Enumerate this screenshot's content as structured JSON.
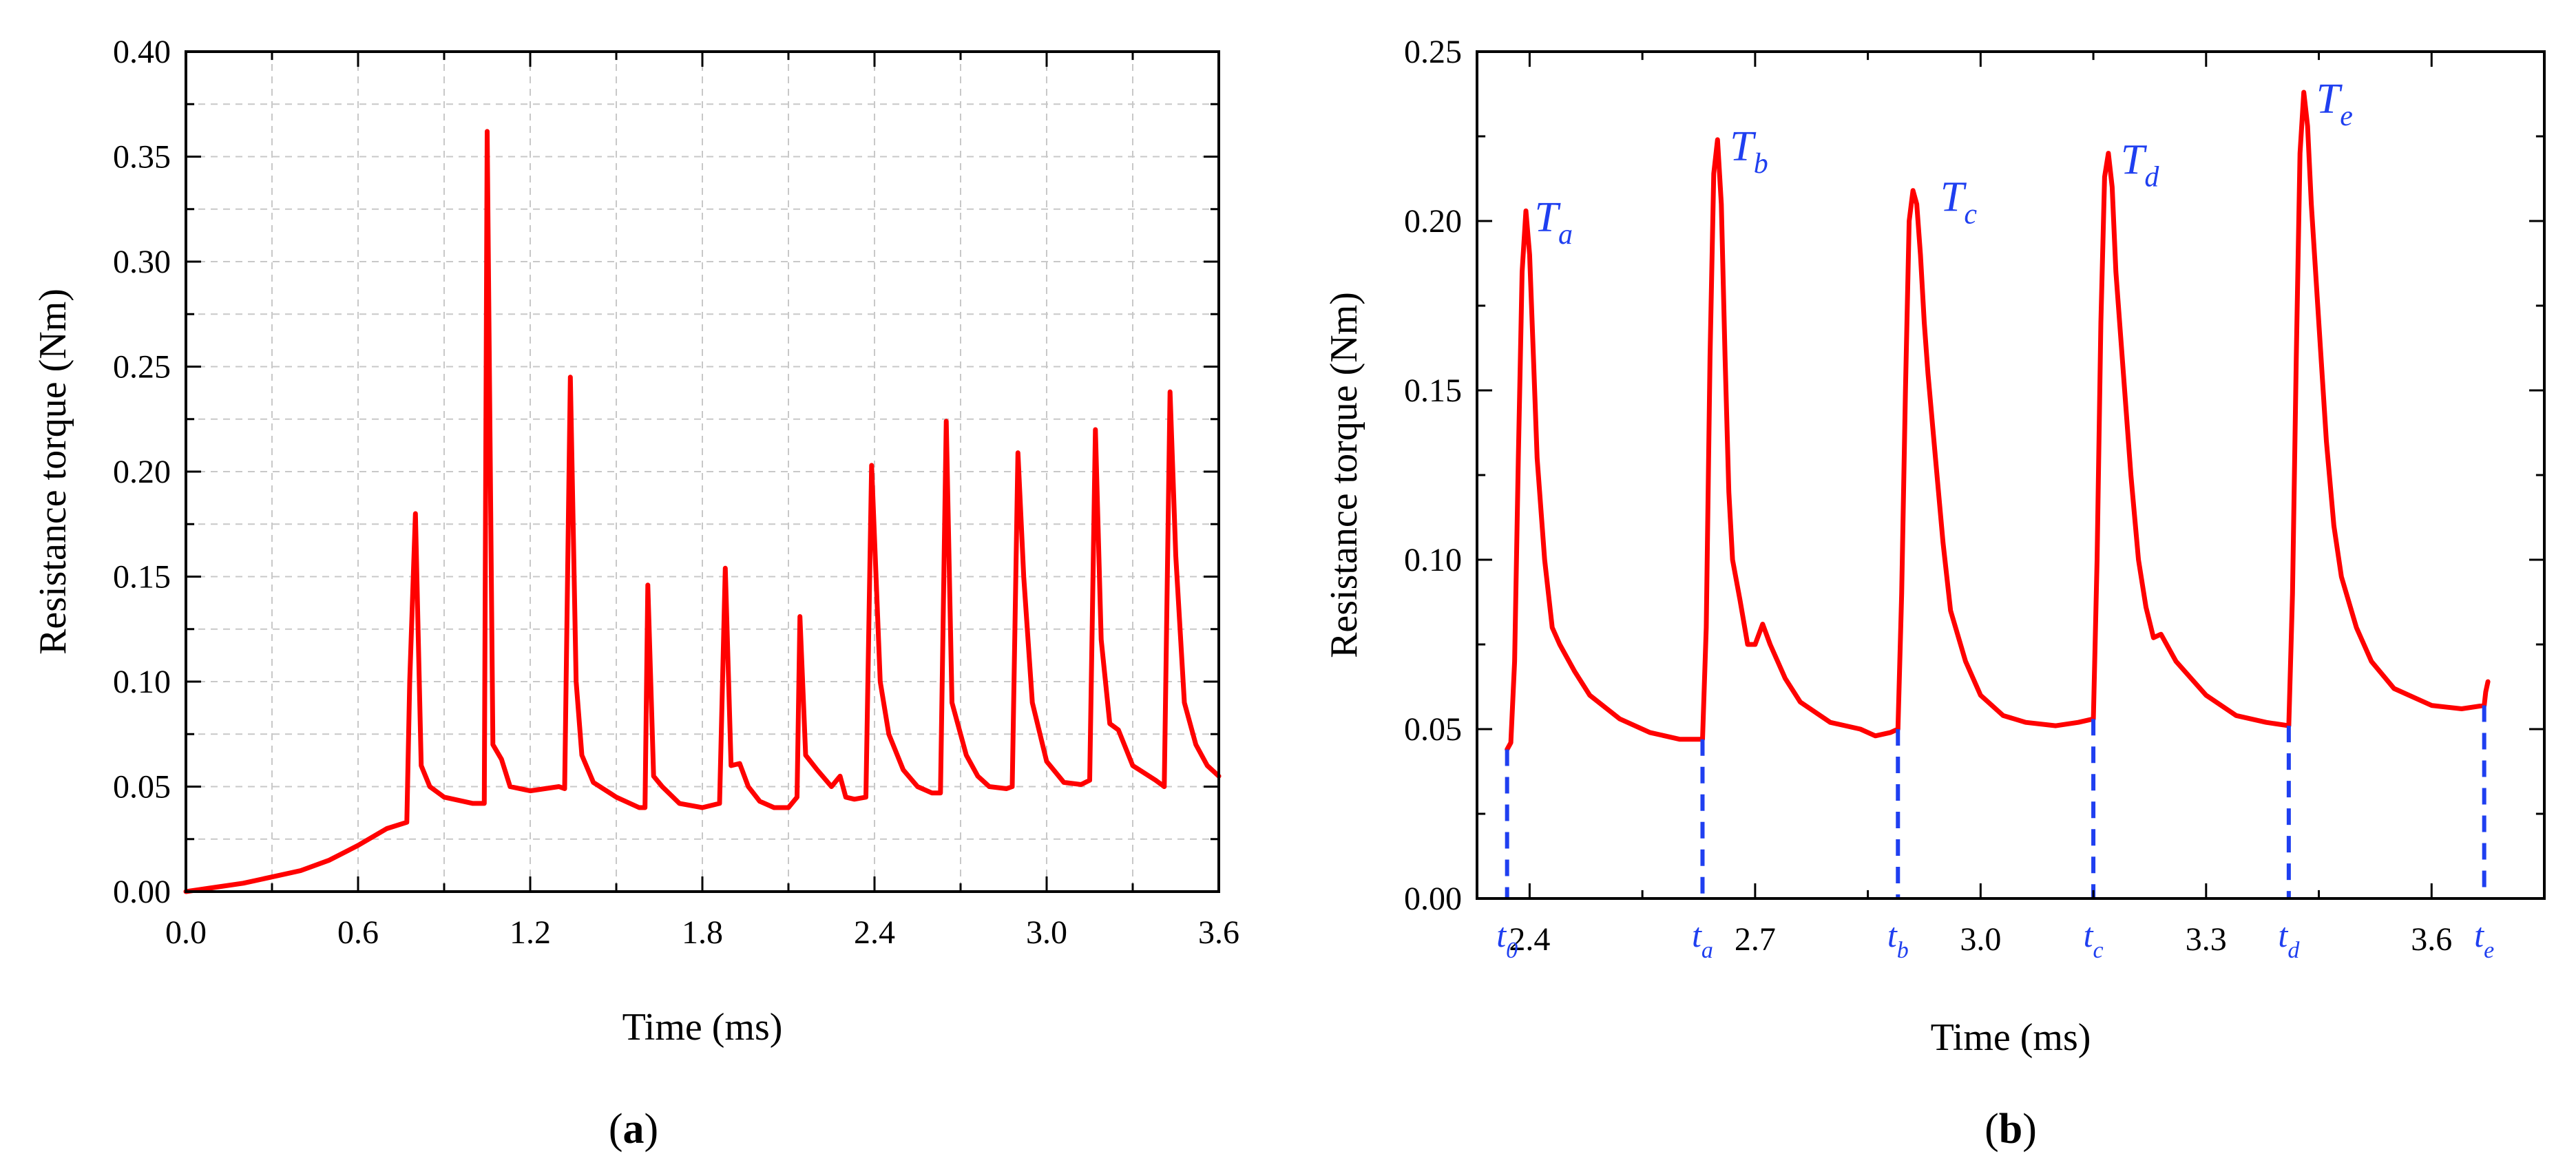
{
  "chart_data": [
    {
      "type": "line",
      "panel_label": "a",
      "xlabel": "Time (ms)",
      "ylabel": "Resistance torque (Nm)",
      "xlim": [
        0.0,
        3.6
      ],
      "ylim": [
        0.0,
        0.4
      ],
      "xticks": [
        "0.0",
        "0.6",
        "1.2",
        "1.8",
        "2.4",
        "3.0",
        "3.6"
      ],
      "yticks": [
        "0.00",
        "0.05",
        "0.10",
        "0.15",
        "0.20",
        "0.25",
        "0.30",
        "0.35",
        "0.40"
      ],
      "grid": true,
      "series": [
        {
          "name": "Resistance torque",
          "color": "#ff0000",
          "x": [
            0.0,
            0.1,
            0.2,
            0.3,
            0.4,
            0.5,
            0.6,
            0.7,
            0.77,
            0.78,
            0.8,
            0.82,
            0.85,
            0.9,
            1.0,
            1.04,
            1.05,
            1.07,
            1.1,
            1.13,
            1.2,
            1.3,
            1.32,
            1.34,
            1.36,
            1.38,
            1.42,
            1.5,
            1.58,
            1.6,
            1.61,
            1.63,
            1.66,
            1.72,
            1.8,
            1.86,
            1.88,
            1.9,
            1.93,
            1.96,
            2.0,
            2.05,
            2.1,
            2.13,
            2.14,
            2.16,
            2.2,
            2.25,
            2.28,
            2.3,
            2.33,
            2.37,
            2.39,
            2.42,
            2.45,
            2.5,
            2.55,
            2.6,
            2.63,
            2.65,
            2.67,
            2.69,
            2.72,
            2.76,
            2.8,
            2.86,
            2.88,
            2.9,
            2.92,
            2.95,
            3.0,
            3.06,
            3.12,
            3.15,
            3.17,
            3.19,
            3.22,
            3.25,
            3.3,
            3.38,
            3.41,
            3.43,
            3.45,
            3.48,
            3.52,
            3.56,
            3.6
          ],
          "y": [
            0.0,
            0.002,
            0.004,
            0.007,
            0.01,
            0.015,
            0.022,
            0.03,
            0.033,
            0.1,
            0.18,
            0.06,
            0.05,
            0.045,
            0.042,
            0.042,
            0.362,
            0.07,
            0.063,
            0.05,
            0.048,
            0.05,
            0.049,
            0.245,
            0.1,
            0.065,
            0.052,
            0.045,
            0.04,
            0.04,
            0.146,
            0.055,
            0.05,
            0.042,
            0.04,
            0.042,
            0.154,
            0.06,
            0.061,
            0.05,
            0.043,
            0.04,
            0.04,
            0.045,
            0.131,
            0.065,
            0.058,
            0.05,
            0.055,
            0.045,
            0.044,
            0.045,
            0.203,
            0.1,
            0.075,
            0.058,
            0.05,
            0.047,
            0.047,
            0.224,
            0.09,
            0.08,
            0.065,
            0.055,
            0.05,
            0.049,
            0.05,
            0.209,
            0.15,
            0.09,
            0.062,
            0.052,
            0.051,
            0.053,
            0.22,
            0.12,
            0.08,
            0.077,
            0.06,
            0.053,
            0.05,
            0.238,
            0.16,
            0.09,
            0.07,
            0.06,
            0.055
          ]
        }
      ]
    },
    {
      "type": "line",
      "panel_label": "b",
      "xlabel": "Time (ms)",
      "ylabel": "Resistance torque (Nm)",
      "xlim": [
        2.33,
        3.75
      ],
      "ylim": [
        0.0,
        0.25
      ],
      "xticks": [
        "2.4",
        "2.7",
        "3.0",
        "3.3",
        "3.6"
      ],
      "yticks": [
        "0.00",
        "0.05",
        "0.10",
        "0.15",
        "0.20",
        "0.25"
      ],
      "grid": false,
      "peak_labels": [
        {
          "base": "T",
          "sub": "a",
          "x": 2.39,
          "y": 0.203
        },
        {
          "base": "T",
          "sub": "b",
          "x": 2.65,
          "y": 0.224
        },
        {
          "base": "T",
          "sub": "c",
          "x": 2.93,
          "y": 0.209
        },
        {
          "base": "T",
          "sub": "d",
          "x": 3.17,
          "y": 0.22
        },
        {
          "base": "T",
          "sub": "e",
          "x": 3.43,
          "y": 0.238
        }
      ],
      "time_markers": [
        {
          "base": "t",
          "sub": "0",
          "x": 2.37,
          "y": 0.044
        },
        {
          "base": "t",
          "sub": "a",
          "x": 2.63,
          "y": 0.047
        },
        {
          "base": "t",
          "sub": "b",
          "x": 2.89,
          "y": 0.05
        },
        {
          "base": "t",
          "sub": "c",
          "x": 3.15,
          "y": 0.053
        },
        {
          "base": "t",
          "sub": "d",
          "x": 3.41,
          "y": 0.051
        },
        {
          "base": "t",
          "sub": "e",
          "x": 3.67,
          "y": 0.057
        }
      ],
      "series": [
        {
          "name": "Resistance torque",
          "color": "#ff0000",
          "x": [
            2.37,
            2.375,
            2.38,
            2.385,
            2.39,
            2.395,
            2.4,
            2.405,
            2.41,
            2.42,
            2.43,
            2.44,
            2.46,
            2.48,
            2.52,
            2.56,
            2.6,
            2.63,
            2.635,
            2.64,
            2.645,
            2.65,
            2.655,
            2.66,
            2.665,
            2.67,
            2.68,
            2.69,
            2.7,
            2.71,
            2.72,
            2.74,
            2.76,
            2.8,
            2.84,
            2.86,
            2.88,
            2.89,
            2.895,
            2.9,
            2.905,
            2.91,
            2.915,
            2.92,
            2.925,
            2.93,
            2.94,
            2.95,
            2.96,
            2.98,
            3.0,
            3.03,
            3.06,
            3.1,
            3.13,
            3.15,
            3.155,
            3.16,
            3.165,
            3.17,
            3.175,
            3.18,
            3.19,
            3.2,
            3.21,
            3.22,
            3.23,
            3.24,
            3.26,
            3.3,
            3.34,
            3.38,
            3.41,
            3.415,
            3.42,
            3.425,
            3.43,
            3.435,
            3.44,
            3.45,
            3.46,
            3.47,
            3.48,
            3.5,
            3.52,
            3.55,
            3.6,
            3.64,
            3.67,
            3.672,
            3.675
          ],
          "y": [
            0.044,
            0.046,
            0.07,
            0.13,
            0.185,
            0.203,
            0.19,
            0.16,
            0.13,
            0.1,
            0.08,
            0.075,
            0.067,
            0.06,
            0.053,
            0.049,
            0.047,
            0.047,
            0.08,
            0.16,
            0.214,
            0.224,
            0.205,
            0.16,
            0.12,
            0.1,
            0.088,
            0.075,
            0.075,
            0.081,
            0.075,
            0.065,
            0.058,
            0.052,
            0.05,
            0.048,
            0.049,
            0.05,
            0.09,
            0.15,
            0.2,
            0.209,
            0.205,
            0.19,
            0.17,
            0.155,
            0.13,
            0.105,
            0.085,
            0.07,
            0.06,
            0.054,
            0.052,
            0.051,
            0.052,
            0.053,
            0.1,
            0.17,
            0.213,
            0.22,
            0.21,
            0.185,
            0.155,
            0.125,
            0.1,
            0.086,
            0.077,
            0.078,
            0.07,
            0.06,
            0.054,
            0.052,
            0.051,
            0.09,
            0.16,
            0.22,
            0.238,
            0.228,
            0.205,
            0.17,
            0.135,
            0.11,
            0.095,
            0.08,
            0.07,
            0.062,
            0.057,
            0.056,
            0.057,
            0.061,
            0.064
          ]
        }
      ]
    }
  ]
}
